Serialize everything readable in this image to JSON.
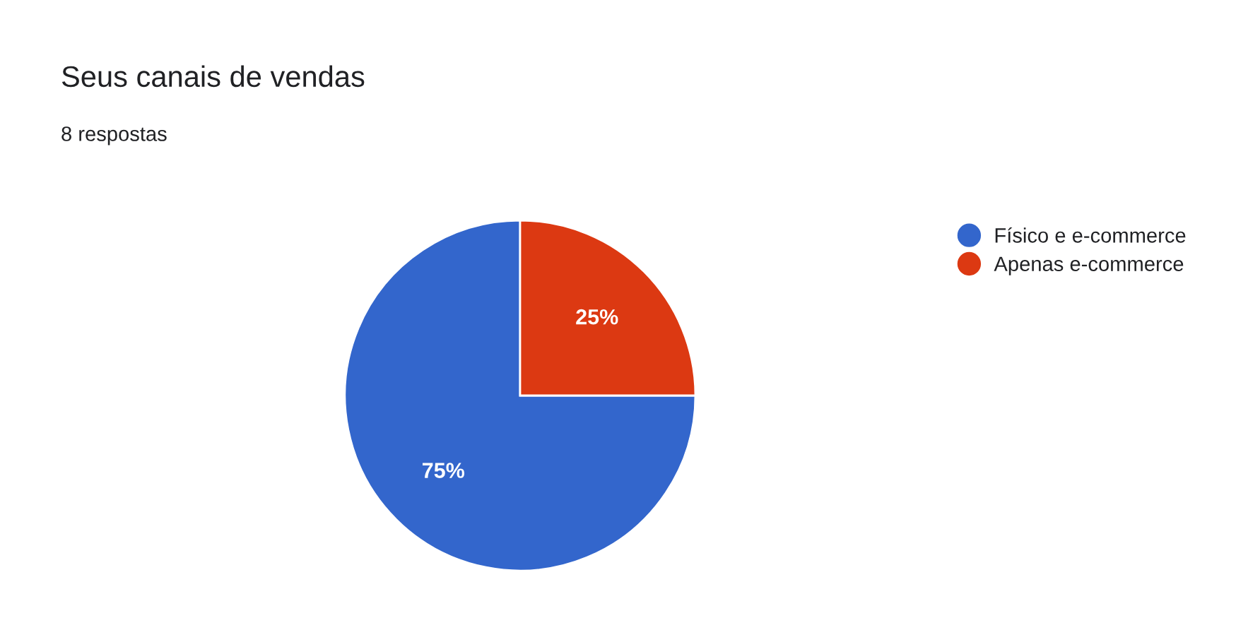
{
  "chart_data": {
    "type": "pie",
    "title": "Seus canais de vendas",
    "subtitle": "8 respostas",
    "categories": [
      "Físico e e-commerce",
      "Apenas e-commerce"
    ],
    "values": [
      75,
      25
    ],
    "colors": [
      "#3366cc",
      "#dc3912"
    ],
    "value_labels": [
      "75%",
      "25%"
    ],
    "legend": "top right"
  }
}
